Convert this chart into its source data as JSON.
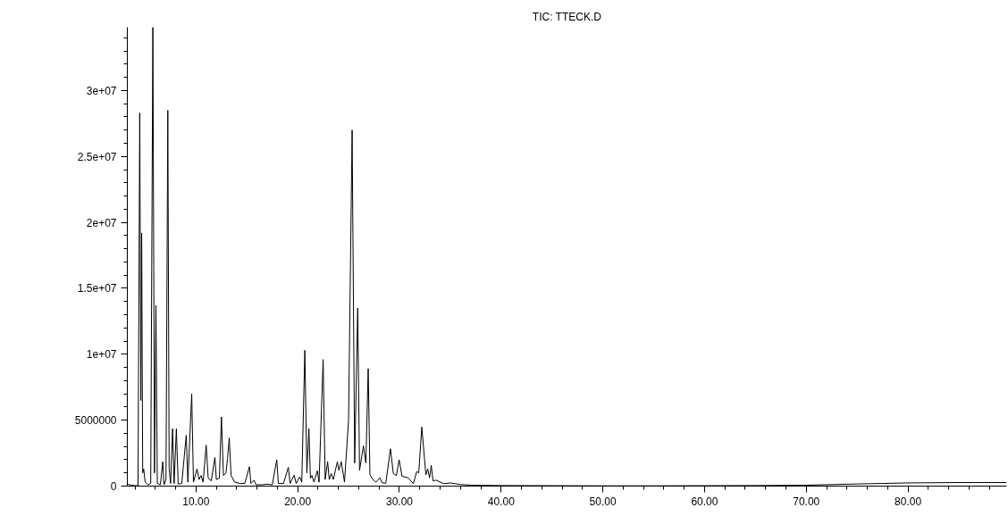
{
  "chart_data": {
    "type": "line",
    "title": "TIC: TTECK.D",
    "grid": false,
    "xlim": [
      3.25,
      89.7
    ],
    "ylim": [
      0,
      34800000
    ],
    "xticks": [
      {
        "value": 4,
        "label": null
      },
      {
        "value": 6,
        "label": null
      },
      {
        "value": 8,
        "label": null
      },
      {
        "value": 10,
        "label": "10.00"
      },
      {
        "value": 12,
        "label": null
      },
      {
        "value": 14,
        "label": null
      },
      {
        "value": 16,
        "label": null
      },
      {
        "value": 18,
        "label": null
      },
      {
        "value": 20,
        "label": "20.00"
      },
      {
        "value": 22,
        "label": null
      },
      {
        "value": 24,
        "label": null
      },
      {
        "value": 26,
        "label": null
      },
      {
        "value": 28,
        "label": null
      },
      {
        "value": 30,
        "label": "30.00"
      },
      {
        "value": 32,
        "label": null
      },
      {
        "value": 34,
        "label": null
      },
      {
        "value": 36,
        "label": null
      },
      {
        "value": 38,
        "label": null
      },
      {
        "value": 40,
        "label": "40.00"
      },
      {
        "value": 42,
        "label": null
      },
      {
        "value": 44,
        "label": null
      },
      {
        "value": 46,
        "label": null
      },
      {
        "value": 48,
        "label": null
      },
      {
        "value": 50,
        "label": "50.00"
      },
      {
        "value": 52,
        "label": null
      },
      {
        "value": 54,
        "label": null
      },
      {
        "value": 56,
        "label": null
      },
      {
        "value": 58,
        "label": null
      },
      {
        "value": 60,
        "label": "60.00"
      },
      {
        "value": 62,
        "label": null
      },
      {
        "value": 64,
        "label": null
      },
      {
        "value": 66,
        "label": null
      },
      {
        "value": 68,
        "label": null
      },
      {
        "value": 70,
        "label": "70.00"
      },
      {
        "value": 72,
        "label": null
      },
      {
        "value": 74,
        "label": null
      },
      {
        "value": 76,
        "label": null
      },
      {
        "value": 78,
        "label": null
      },
      {
        "value": 80,
        "label": "80.00"
      },
      {
        "value": 82,
        "label": null
      },
      {
        "value": 84,
        "label": null
      },
      {
        "value": 86,
        "label": null
      },
      {
        "value": 88,
        "label": null
      }
    ],
    "yticks": [
      0,
      {
        "value": 1000000,
        "label": null
      },
      {
        "value": 2000000,
        "label": null
      },
      {
        "value": 3000000,
        "label": null
      },
      {
        "value": 4000000,
        "label": null
      },
      5000000,
      {
        "value": 6000000,
        "label": null
      },
      {
        "value": 7000000,
        "label": null
      },
      {
        "value": 8000000,
        "label": null
      },
      {
        "value": 9000000,
        "label": null
      },
      {
        "value": 10000000,
        "label": "1e+07"
      },
      {
        "value": 11000000,
        "label": null
      },
      {
        "value": 12000000,
        "label": null
      },
      {
        "value": 13000000,
        "label": null
      },
      {
        "value": 14000000,
        "label": null
      },
      {
        "value": 15000000,
        "label": "1.5e+07"
      },
      {
        "value": 16000000,
        "label": null
      },
      {
        "value": 17000000,
        "label": null
      },
      {
        "value": 18000000,
        "label": null
      },
      {
        "value": 19000000,
        "label": null
      },
      {
        "value": 20000000,
        "label": "2e+07"
      },
      {
        "value": 21000000,
        "label": null
      },
      {
        "value": 22000000,
        "label": null
      },
      {
        "value": 23000000,
        "label": null
      },
      {
        "value": 24000000,
        "label": null
      },
      {
        "value": 25000000,
        "label": "2.5e+07"
      },
      {
        "value": 26000000,
        "label": null
      },
      {
        "value": 27000000,
        "label": null
      },
      {
        "value": 28000000,
        "label": null
      },
      {
        "value": 29000000,
        "label": null
      },
      {
        "value": 30000000,
        "label": "3e+07"
      },
      {
        "value": 31000000,
        "label": null
      },
      {
        "value": 32000000,
        "label": null
      },
      {
        "value": 33000000,
        "label": null
      },
      {
        "value": 34000000,
        "label": null
      }
    ],
    "series": [
      {
        "color": "#000000",
        "x": [
          3.3,
          3.6,
          4.0,
          4.3,
          4.47,
          4.58,
          4.66,
          4.76,
          4.86,
          5.0,
          5.3,
          5.55,
          5.76,
          5.92,
          6.06,
          6.2,
          6.5,
          6.73,
          6.85,
          7.05,
          7.23,
          7.36,
          7.5,
          7.7,
          7.85,
          8.07,
          8.25,
          8.6,
          9.04,
          9.2,
          9.58,
          9.75,
          10.1,
          10.3,
          10.5,
          10.7,
          11.0,
          11.2,
          11.5,
          11.86,
          12.0,
          12.3,
          12.5,
          12.7,
          12.95,
          13.1,
          13.27,
          13.45,
          13.8,
          14.3,
          14.8,
          15.25,
          15.4,
          15.7,
          15.9,
          16.5,
          17.0,
          17.5,
          17.94,
          18.1,
          18.6,
          19.08,
          19.25,
          19.65,
          19.85,
          20.2,
          20.4,
          20.7,
          20.9,
          21.1,
          21.25,
          21.4,
          21.6,
          21.93,
          22.1,
          22.5,
          22.7,
          22.94,
          23.1,
          23.3,
          23.5,
          23.9,
          24.05,
          24.28,
          24.6,
          25.0,
          25.35,
          25.6,
          25.9,
          26.08,
          26.46,
          26.7,
          26.93,
          27.1,
          27.34,
          27.7,
          28.07,
          28.3,
          28.66,
          29.12,
          29.4,
          29.7,
          29.97,
          30.26,
          30.85,
          31.37,
          31.7,
          31.9,
          32.2,
          32.6,
          32.78,
          32.96,
          33.13,
          33.3,
          33.6,
          34.35,
          35.0,
          36.0,
          37.0,
          40.0,
          45.0,
          50.0,
          55.0,
          60.0,
          65.0,
          70.0,
          75.0,
          80.0,
          85.0,
          89.7
        ],
        "values": [
          140000,
          80000,
          30000,
          30000,
          28300000,
          6500000,
          19200000,
          1000000,
          1300000,
          300000,
          100000,
          200000,
          34800000,
          1000000,
          13700000,
          200000,
          100000,
          1850000,
          100000,
          500000,
          28500000,
          1360000,
          200000,
          4350000,
          200000,
          4350000,
          150000,
          200000,
          3850000,
          300000,
          7000000,
          300000,
          1300000,
          500000,
          800000,
          300000,
          3100000,
          600000,
          400000,
          2170000,
          500000,
          600000,
          5250000,
          800000,
          1000000,
          2100000,
          3660000,
          800000,
          300000,
          200000,
          200000,
          1470000,
          200000,
          440000,
          100000,
          100000,
          150000,
          100000,
          2000000,
          200000,
          200000,
          1420000,
          200000,
          820000,
          200000,
          700000,
          300000,
          10300000,
          1000000,
          4350000,
          600000,
          800000,
          300000,
          1160000,
          300000,
          9600000,
          500000,
          1850000,
          500000,
          950000,
          500000,
          1850000,
          1200000,
          1850000,
          300000,
          5000000,
          27000000,
          1750000,
          13500000,
          1200000,
          3050000,
          1750000,
          8900000,
          870000,
          540000,
          300000,
          630000,
          250000,
          220000,
          2830000,
          960000,
          800000,
          2000000,
          740000,
          630000,
          180000,
          1100000,
          1000000,
          4480000,
          850000,
          1300000,
          630000,
          1570000,
          400000,
          450000,
          180000,
          240000,
          120000,
          70000,
          40000,
          30000,
          20000,
          20000,
          30000,
          40000,
          70000,
          160000,
          240000,
          270000,
          270000
        ]
      }
    ]
  }
}
